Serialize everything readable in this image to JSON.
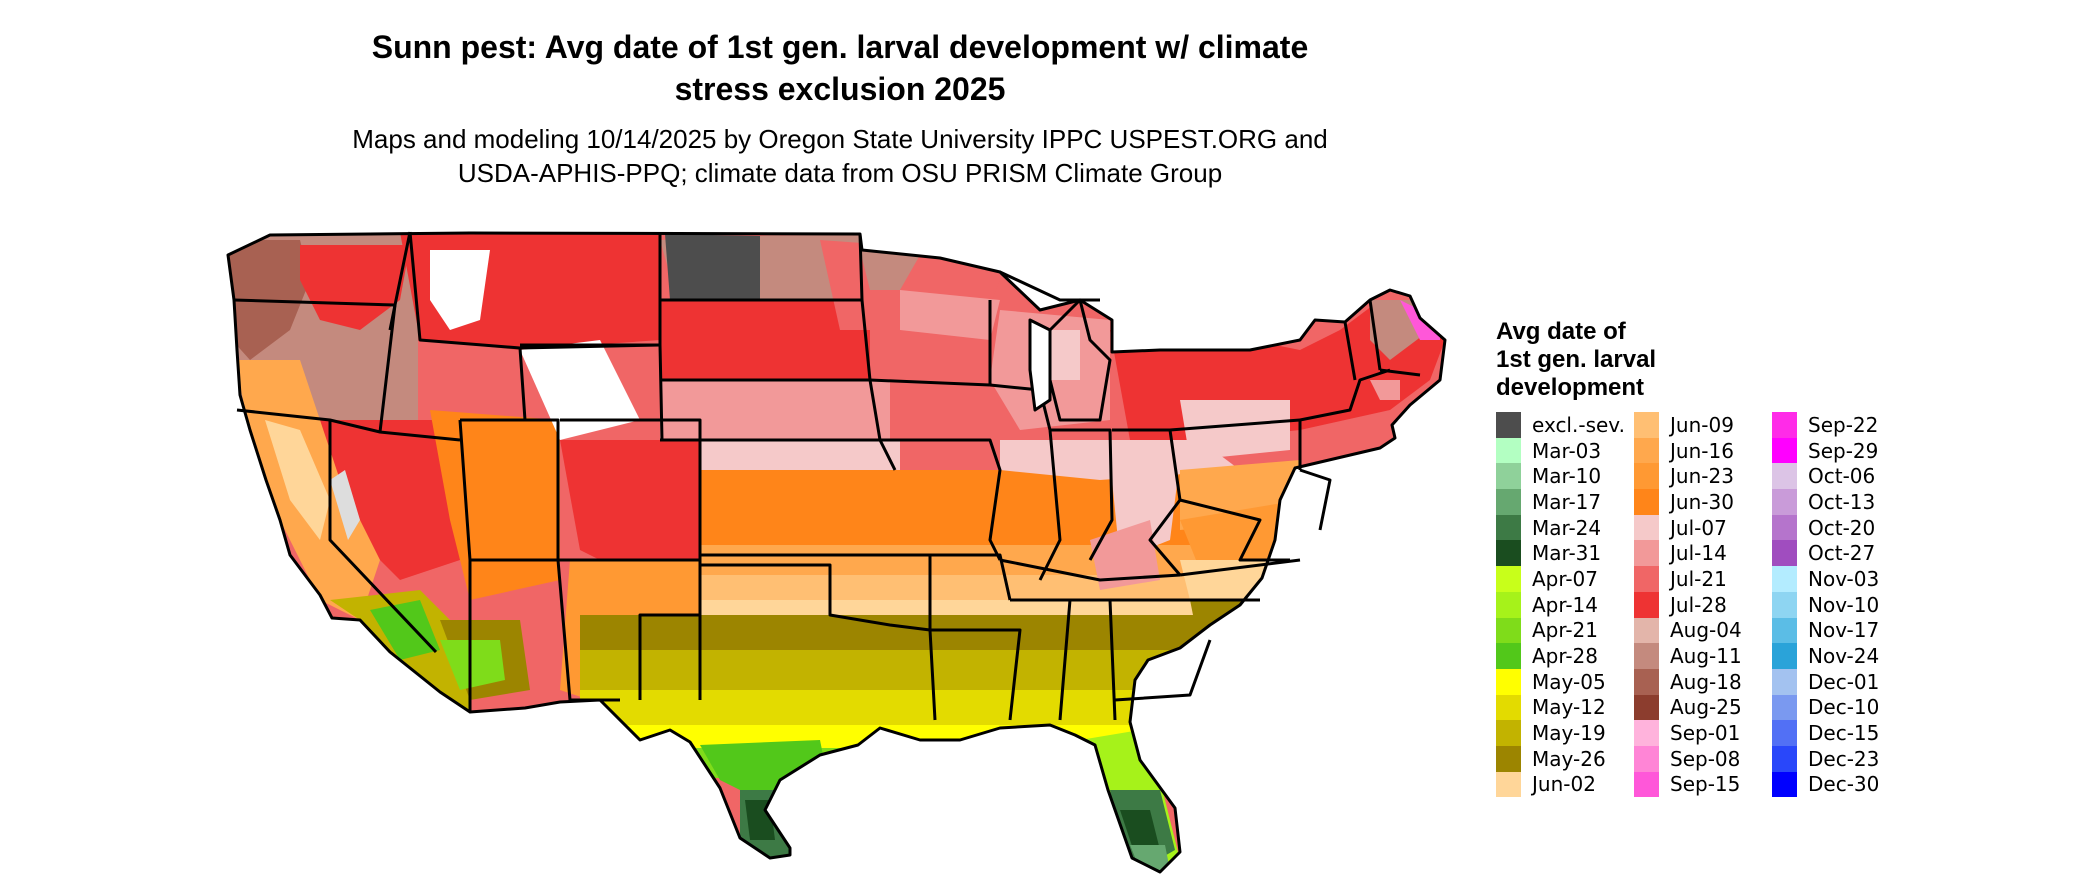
{
  "title_line1": "Sunn pest: Avg date of 1st gen. larval development w/ climate",
  "title_line2": "stress exclusion 2025",
  "subtitle_line1": "Maps and modeling 10/14/2025 by Oregon State University IPPC USPEST.ORG and",
  "subtitle_line2": "USDA-APHIS-PPQ; climate data from OSU PRISM Climate Group",
  "legend": {
    "title_line1": "Avg date of",
    "title_line2": "1st gen. larval",
    "title_line3": "development",
    "columns": [
      [
        {
          "label": "excl.-sev.",
          "color": "#4d4d4d"
        },
        {
          "label": "Mar-03",
          "color": "#b3ffc2"
        },
        {
          "label": "Mar-10",
          "color": "#8fd19a"
        },
        {
          "label": "Mar-17",
          "color": "#66a870"
        },
        {
          "label": "Mar-24",
          "color": "#3d7a45"
        },
        {
          "label": "Mar-31",
          "color": "#1a4d1f"
        },
        {
          "label": "Apr-07",
          "color": "#c8ff1a"
        },
        {
          "label": "Apr-14",
          "color": "#a6f21a"
        },
        {
          "label": "Apr-21",
          "color": "#7fdc1a"
        },
        {
          "label": "Apr-28",
          "color": "#52c81a"
        },
        {
          "label": "May-05",
          "color": "#ffff00"
        },
        {
          "label": "May-12",
          "color": "#e3db00"
        },
        {
          "label": "May-19",
          "color": "#c2b300"
        },
        {
          "label": "May-26",
          "color": "#9c8500"
        },
        {
          "label": "Jun-02",
          "color": "#ffd699"
        }
      ],
      [
        {
          "label": "Jun-09",
          "color": "#ffbf73"
        },
        {
          "label": "Jun-16",
          "color": "#ffa84d"
        },
        {
          "label": "Jun-23",
          "color": "#ff9933"
        },
        {
          "label": "Jun-30",
          "color": "#ff8519"
        },
        {
          "label": "Jul-07",
          "color": "#f5c9c9"
        },
        {
          "label": "Jul-14",
          "color": "#f29999"
        },
        {
          "label": "Jul-21",
          "color": "#f06666"
        },
        {
          "label": "Jul-28",
          "color": "#ee3333"
        },
        {
          "label": "Aug-04",
          "color": "#e3b5aa"
        },
        {
          "label": "Aug-11",
          "color": "#c48a7e"
        },
        {
          "label": "Aug-18",
          "color": "#a86152"
        },
        {
          "label": "Aug-25",
          "color": "#8c3d2e"
        },
        {
          "label": "Sep-01",
          "color": "#ffb3dc"
        },
        {
          "label": "Sep-08",
          "color": "#ff85d6"
        },
        {
          "label": "Sep-15",
          "color": "#ff57d9"
        }
      ],
      [
        {
          "label": "Sep-22",
          "color": "#ff2be8"
        },
        {
          "label": "Sep-29",
          "color": "#ff00ff"
        },
        {
          "label": "Oct-06",
          "color": "#dcc4e6"
        },
        {
          "label": "Oct-13",
          "color": "#c99bd9"
        },
        {
          "label": "Oct-20",
          "color": "#b574cc"
        },
        {
          "label": "Oct-27",
          "color": "#a04dbf"
        },
        {
          "label": "Nov-03",
          "color": "#b3ecff"
        },
        {
          "label": "Nov-10",
          "color": "#8ed5f2"
        },
        {
          "label": "Nov-17",
          "color": "#5bbde6"
        },
        {
          "label": "Nov-24",
          "color": "#2aa3d9"
        },
        {
          "label": "Dec-01",
          "color": "#a3c2f0"
        },
        {
          "label": "Dec-10",
          "color": "#7a99f0"
        },
        {
          "label": "Dec-15",
          "color": "#5270f5"
        },
        {
          "label": "Dec-23",
          "color": "#2947fa"
        },
        {
          "label": "Dec-30",
          "color": "#0000ff"
        }
      ]
    ]
  }
}
